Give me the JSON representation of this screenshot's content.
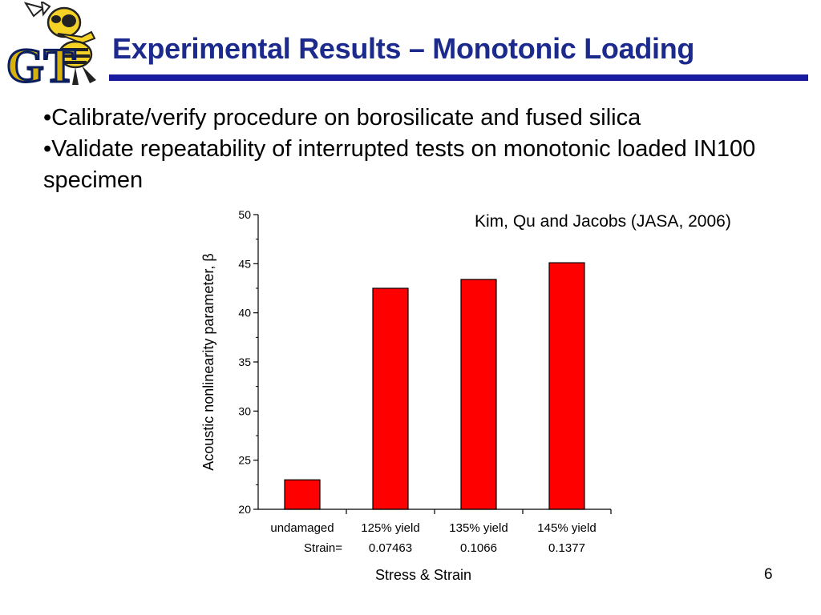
{
  "slide": {
    "title": "Experimental Results – Monotonic Loading",
    "logo_text": "GT",
    "bullets": [
      "•Calibrate/verify procedure on borosilicate and fused silica",
      "•Validate repeatability of interrupted tests on monotonic loaded IN100 specimen"
    ],
    "citation": "Kim, Qu and Jacobs (JASA, 2006)",
    "page_number": "6"
  },
  "colors": {
    "title": "#1b2a8c",
    "rule": "#1a1aa0",
    "bar": "#ff0000",
    "logo_gold": "#d8b20c",
    "logo_navy": "#0a1d5c"
  },
  "chart_data": {
    "type": "bar",
    "categories": [
      "undamaged",
      "125% yield",
      "135% yield",
      "145% yield"
    ],
    "strain_label": "Strain=",
    "strain_values": [
      "",
      "0.07463",
      "0.1066",
      "0.1377"
    ],
    "values": [
      23,
      42.5,
      43.4,
      45.1
    ],
    "ylabel": "Acoustic nonlinearity parameter, β",
    "xlabel": "Stress & Strain",
    "ylim": [
      20,
      50
    ],
    "yticks": [
      20,
      25,
      30,
      35,
      40,
      45,
      50
    ],
    "grid": false,
    "bar_color": "#ff0000"
  }
}
